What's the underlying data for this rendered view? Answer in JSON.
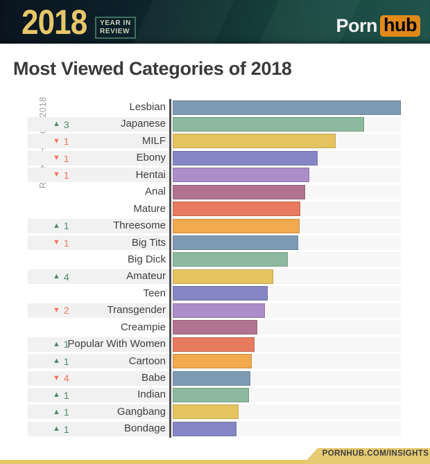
{
  "header": {
    "year": "2018",
    "badge": {
      "line1": "YEAR IN",
      "line2": "REVIEW"
    },
    "logo": {
      "part1": "Porn",
      "part2": "hub"
    },
    "colors": {
      "year_gold": "#e7c66a",
      "logo_orange": "#f7971d",
      "badge_border": "#40705f"
    }
  },
  "page_title": "Most Viewed Categories of 2018",
  "footer": {
    "ribbon_text": "PORNHUB.COM/INSIGHTS",
    "gold": "#e6cb73",
    "strip_gold": "#e4c865"
  },
  "chart_data": {
    "type": "bar",
    "orientation": "horizontal",
    "title": "Most Viewed Categories of 2018",
    "y_axis_label": "RANK CHANGE 2018",
    "value_unit": "relative bar length, % of longest bar (no numeric axis shown)",
    "xlim": [
      0,
      100
    ],
    "grid": false,
    "categories": [
      "Lesbian",
      "Japanese",
      "MILF",
      "Ebony",
      "Hentai",
      "Anal",
      "Mature",
      "Threesome",
      "Big Tits",
      "Big Dick",
      "Amateur",
      "Teen",
      "Transgender",
      "Creampie",
      "Popular With Women",
      "Cartoon",
      "Babe",
      "Indian",
      "Gangbang",
      "Bondage"
    ],
    "values": [
      100,
      84,
      71.5,
      63.5,
      60,
      58,
      56,
      55.5,
      55,
      50.5,
      44,
      41.5,
      40.5,
      37,
      36,
      34.5,
      34,
      33.5,
      29,
      28
    ],
    "rank_changes": [
      null,
      {
        "dir": "up",
        "n": 3
      },
      {
        "dir": "down",
        "n": 1
      },
      {
        "dir": "down",
        "n": 1
      },
      {
        "dir": "down",
        "n": 1
      },
      null,
      null,
      {
        "dir": "up",
        "n": 1
      },
      {
        "dir": "down",
        "n": 1
      },
      null,
      {
        "dir": "up",
        "n": 4
      },
      null,
      {
        "dir": "down",
        "n": 2
      },
      null,
      {
        "dir": "up",
        "n": 1
      },
      {
        "dir": "up",
        "n": 1
      },
      {
        "dir": "down",
        "n": 4
      },
      {
        "dir": "up",
        "n": 1
      },
      {
        "dir": "up",
        "n": 1
      },
      {
        "dir": "up",
        "n": 1
      }
    ],
    "bar_colors": [
      "#7E9BB4",
      "#8DB99E",
      "#E5C35F",
      "#8686C6",
      "#AB8DC9",
      "#B27390",
      "#E77A5F",
      "#F3A950",
      "#7E9BB4",
      "#8DB99E",
      "#E5C35F",
      "#8686C6",
      "#AB8DC9",
      "#B27390",
      "#E77A5F",
      "#F3A950",
      "#7E9BB4",
      "#8DB99E",
      "#E5C35F",
      "#8686C6"
    ],
    "palette": {
      "steel_blue": "#7E9BB4",
      "sage_green": "#8DB99E",
      "gold": "#E5C35F",
      "periwinkle": "#8686C6",
      "lavender": "#AB8DC9",
      "berry": "#B27390",
      "coral": "#E77A5F",
      "orange": "#F3A950"
    },
    "indicator_colors": {
      "up": "#4E8A67",
      "down": "#F0765B"
    },
    "icons": {
      "rank_up": "▲",
      "rank_down": "▼"
    },
    "row_strip_color": "#f1f1f1",
    "track_color": "#f7f7f7"
  }
}
